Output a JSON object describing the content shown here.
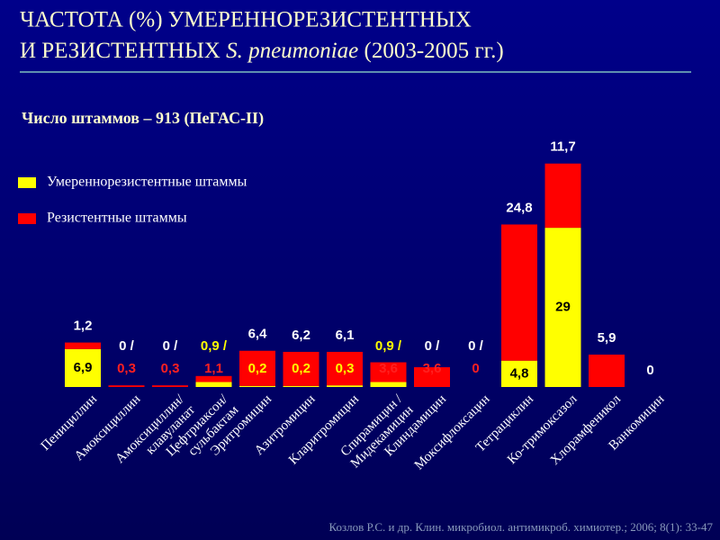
{
  "chart_data": {
    "type": "stacked_bar",
    "title": [
      "ЧАСТОТА (%) УМЕРЕННОРЕЗИСТЕНТНЫХ",
      [
        "И РЕЗИСТЕНТНЫХ ",
        "S. pneumoniae",
        " (2003-2005 гг.)"
      ]
    ],
    "subtitle": "Число штаммов – 913 (ПеГАС-II)",
    "source": "Козлов Р.С. и др. Клин. микробиол. антимикроб. химиотер.; 2006; 8(1): 33-47",
    "categories": [
      [
        "Пенициллин"
      ],
      [
        "Амоксициллин"
      ],
      [
        "Амоксициллин/",
        "клавуланат"
      ],
      [
        "Цефтриаксон/",
        "сульбактам"
      ],
      [
        "Эритромицин"
      ],
      [
        "Азитромицин"
      ],
      [
        "Кларитромицин"
      ],
      [
        "Спирамицин /",
        "Мидекамицин"
      ],
      [
        "Клиндамицин"
      ],
      [
        "Моксифлоксацин"
      ],
      [
        "Тетрациклин"
      ],
      [
        "Ко-тримоксазол"
      ],
      [
        "Хлорамфеникол"
      ],
      [
        "Ванкомицин"
      ]
    ],
    "series": [
      {
        "name": "Умереннорезистентные штаммы",
        "color": "#ffff00",
        "values": [
          6.9,
          0,
          0,
          0.9,
          0.2,
          0.2,
          0.3,
          0.9,
          0,
          0,
          4.8,
          29,
          null,
          null
        ],
        "value_labels": [
          "6,9",
          "0 /",
          "0 /",
          "0,9 /",
          "0,2",
          "0,2",
          "0,3",
          "0,9 /",
          "0 /",
          "0 /",
          "4,8",
          "29",
          null,
          null
        ]
      },
      {
        "name": "Резистентные штаммы",
        "color": "#ff0000",
        "values": [
          1.2,
          0.3,
          0.3,
          1.1,
          6.4,
          6.2,
          6.1,
          3.6,
          3.6,
          0,
          24.8,
          11.7,
          5.9,
          0
        ],
        "value_labels": [
          "1,2",
          "0,3",
          "0,3",
          "1,1",
          "6,4",
          "6,2",
          "6,1",
          "3,6",
          "3,6",
          "0",
          "24,8",
          "11,7",
          "5,9",
          "0"
        ]
      }
    ]
  }
}
